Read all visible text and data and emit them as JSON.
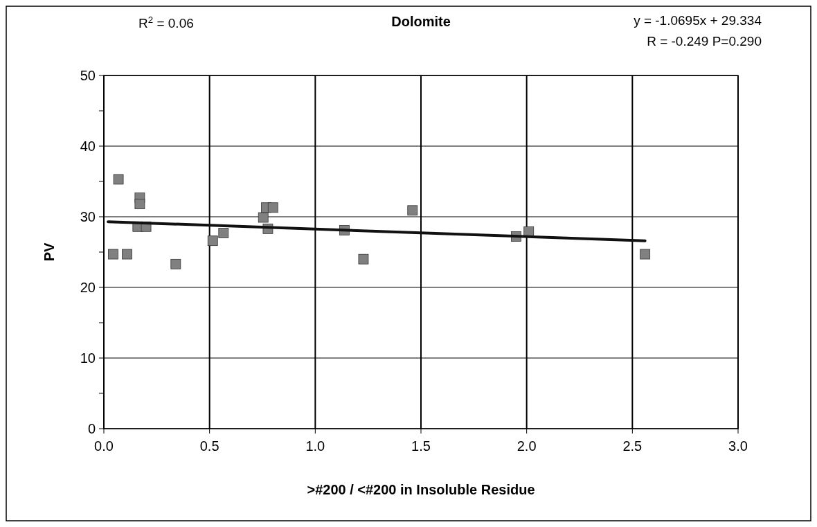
{
  "chart_data": {
    "type": "scatter",
    "title": "Dolomite",
    "xlabel": ">#200 / <#200 in Insoluble Residue",
    "ylabel": "PV",
    "annotations": [
      "R$^{2}$ = 0.06",
      "y = -1.0695x + 29.334",
      "R = -0.249  P=0.290"
    ],
    "xlim": [
      0,
      3
    ],
    "xticks": [
      {
        "value": 0,
        "label": "0.0"
      },
      {
        "value": 0.5,
        "label": "0.5"
      },
      {
        "value": 1,
        "label": "1.0"
      },
      {
        "value": 1.5,
        "label": "1.5"
      },
      {
        "value": 2,
        "label": "2.0"
      },
      {
        "value": 2.5,
        "label": "2.5"
      },
      {
        "value": 3,
        "label": "3.0"
      }
    ],
    "ylim": [
      0,
      50
    ],
    "yticks": [
      0,
      {
        "value": 5,
        "label": null
      },
      10,
      {
        "value": 15,
        "label": null
      },
      20,
      {
        "value": 25,
        "label": null
      },
      30,
      {
        "value": 35,
        "label": null
      },
      40,
      {
        "value": 45,
        "label": null
      },
      50
    ],
    "grid": true,
    "series": [
      {
        "color": "#808080",
        "marker": "square",
        "x": [
          0.044,
          0.069,
          0.11,
          0.16,
          0.17,
          0.17,
          0.2,
          0.34,
          0.515,
          0.566,
          0.754,
          0.768,
          0.776,
          0.8,
          1.138,
          1.228,
          1.46,
          1.95,
          2.01,
          2.56
        ],
        "values": [
          24.7,
          35.3,
          24.7,
          28.6,
          32.7,
          31.8,
          28.6,
          23.3,
          26.6,
          27.7,
          29.9,
          31.3,
          28.3,
          31.3,
          28.1,
          24.0,
          30.9,
          27.2,
          27.9,
          24.7
        ]
      },
      {
        "type": "line",
        "color": "#111111",
        "marker": "none",
        "line_style": "solid",
        "x": [
          0.02,
          2.56
        ],
        "values": [
          29.3,
          26.6
        ]
      }
    ]
  }
}
